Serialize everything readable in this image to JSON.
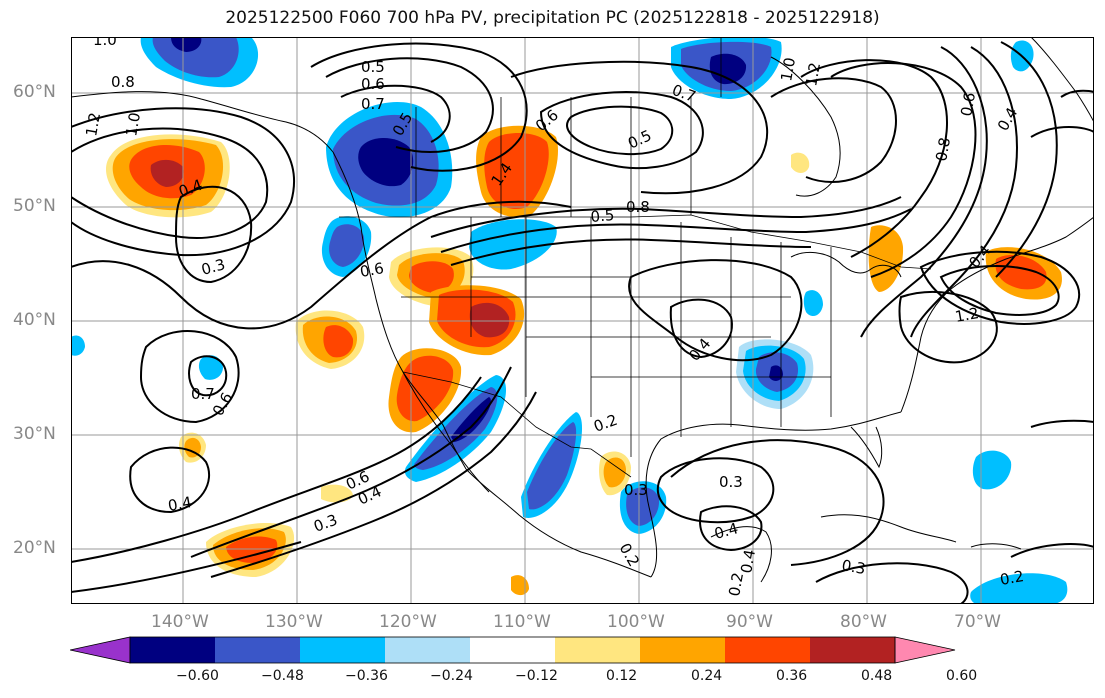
{
  "title": "2025122500 F060 700 hPa PV, precipitation PC (2025122818 - 2025122918)",
  "map": {
    "lat_labels": [
      "60°N",
      "50°N",
      "40°N",
      "30°N",
      "20°N"
    ],
    "lon_labels": [
      "140°W",
      "130°W",
      "120°W",
      "110°W",
      "100°W",
      "90°W",
      "80°W",
      "70°W"
    ],
    "contour_labels": [
      "1.0",
      "0.8",
      "1.2",
      "1.0",
      "0.4",
      "0.3",
      "0.5",
      "0.6",
      "0.7",
      "0.6",
      "0.5",
      "0.5",
      "0.6",
      "0.7",
      "1.4",
      "0.5",
      "0.8",
      "1.2",
      "1.0",
      "0.8",
      "0.6",
      "0.4",
      "0.2",
      "0.4",
      "0.7",
      "0.6",
      "0.4",
      "0.6",
      "0.4",
      "0.3",
      "0.2",
      "0.3",
      "0.2",
      "0.4",
      "0.3",
      "0.4",
      "0.3",
      "0.2",
      "1.2",
      "0.4"
    ]
  },
  "colorbar": {
    "ticks": [
      "−0.60",
      "−0.48",
      "−0.36",
      "−0.24",
      "−0.12",
      "0.12",
      "0.24",
      "0.36",
      "0.48",
      "0.60"
    ],
    "colors": [
      "#9932cc",
      "#000080",
      "#3a56c8",
      "#00bfff",
      "#aedff7",
      "#ffffff",
      "#ffe680",
      "#ffa500",
      "#ff4500",
      "#b22222",
      "#ff88b0"
    ]
  }
}
